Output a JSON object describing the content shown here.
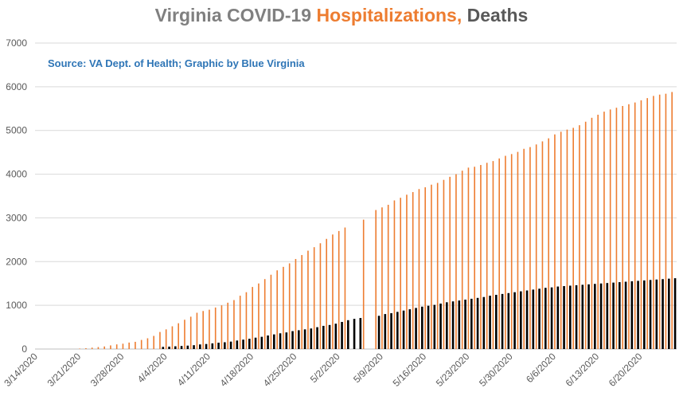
{
  "title": {
    "part1": "Virginia COVID-19 ",
    "part2": "Hospitalizations,",
    "part3": " Deaths"
  },
  "subtitle": "Source: VA Dept. of Health; Graphic by Blue Virginia",
  "colors": {
    "hospitalizations": "#ed7d31",
    "deaths": "#000000",
    "title_gray": "#808080",
    "title_orange": "#ed7d31",
    "title_dark": "#595959",
    "subtitle_blue": "#2e75b6",
    "gridline": "#d9d9d9"
  },
  "chart_data": {
    "type": "bar",
    "title": "Virginia COVID-19 Hospitalizations, Deaths",
    "subtitle": "Source: VA Dept. of Health; Graphic by Blue Virginia",
    "xlabel": "",
    "ylabel": "",
    "ylim": [
      0,
      7000
    ],
    "yticks": [
      0,
      1000,
      2000,
      3000,
      4000,
      5000,
      6000,
      7000
    ],
    "xticks": [
      "3/14/2020",
      "3/21/2020",
      "3/28/2020",
      "4/4/2020",
      "4/11/2020",
      "4/18/2020",
      "4/25/2020",
      "5/2/2020",
      "5/9/2020",
      "5/16/2020",
      "5/23/2020",
      "5/30/2020",
      "6/6/2020",
      "6/13/2020",
      "6/20/2020"
    ],
    "x_start": "3/14/2020",
    "grid": true,
    "legend": "none",
    "series": [
      {
        "name": "Hospitalizations",
        "values": [
          0,
          0,
          0,
          0,
          0,
          0,
          0,
          10,
          19,
          32,
          45,
          59,
          83,
          106,
          122,
          148,
          165,
          208,
          246,
          300,
          390,
          450,
          520,
          590,
          670,
          740,
          830,
          870,
          900,
          950,
          1000,
          1060,
          1120,
          1220,
          1300,
          1420,
          1500,
          1600,
          1700,
          1800,
          1880,
          1960,
          2060,
          2150,
          2250,
          2330,
          2420,
          2520,
          2620,
          2700,
          2780,
          null,
          null,
          2960,
          null,
          3180,
          3240,
          3300,
          3400,
          3460,
          3530,
          3590,
          3660,
          3700,
          3760,
          3800,
          3870,
          3940,
          4000,
          4080,
          4150,
          4170,
          4210,
          4260,
          4300,
          4360,
          4420,
          4460,
          4510,
          4580,
          4620,
          4680,
          4750,
          4820,
          4910,
          4970,
          5020,
          5060,
          5120,
          5200,
          5290,
          5360,
          5430,
          5480,
          5520,
          5560,
          5600,
          5640,
          5690,
          5740,
          5790,
          5820,
          5840,
          5880
        ],
        "color": "#ed7d31"
      },
      {
        "name": "Deaths",
        "values": [
          0,
          0,
          0,
          0,
          0,
          0,
          0,
          0,
          0,
          0,
          0,
          0,
          0,
          0,
          0,
          0,
          0,
          0,
          0,
          0,
          50,
          55,
          63,
          70,
          78,
          88,
          105,
          115,
          130,
          145,
          155,
          170,
          195,
          215,
          235,
          260,
          280,
          310,
          335,
          360,
          380,
          410,
          430,
          450,
          470,
          500,
          530,
          550,
          580,
          620,
          660,
          690,
          710,
          null,
          null,
          760,
          800,
          820,
          850,
          880,
          910,
          940,
          970,
          990,
          1010,
          1040,
          1070,
          1090,
          1110,
          1130,
          1150,
          1170,
          1190,
          1220,
          1240,
          1260,
          1280,
          1300,
          1320,
          1340,
          1360,
          1380,
          1400,
          1410,
          1430,
          1440,
          1450,
          1460,
          1470,
          1480,
          1490,
          1500,
          1510,
          1520,
          1530,
          1540,
          1550,
          1560,
          1570,
          1580,
          1590,
          1600,
          1610,
          1620
        ],
        "color": "#000000"
      }
    ]
  }
}
